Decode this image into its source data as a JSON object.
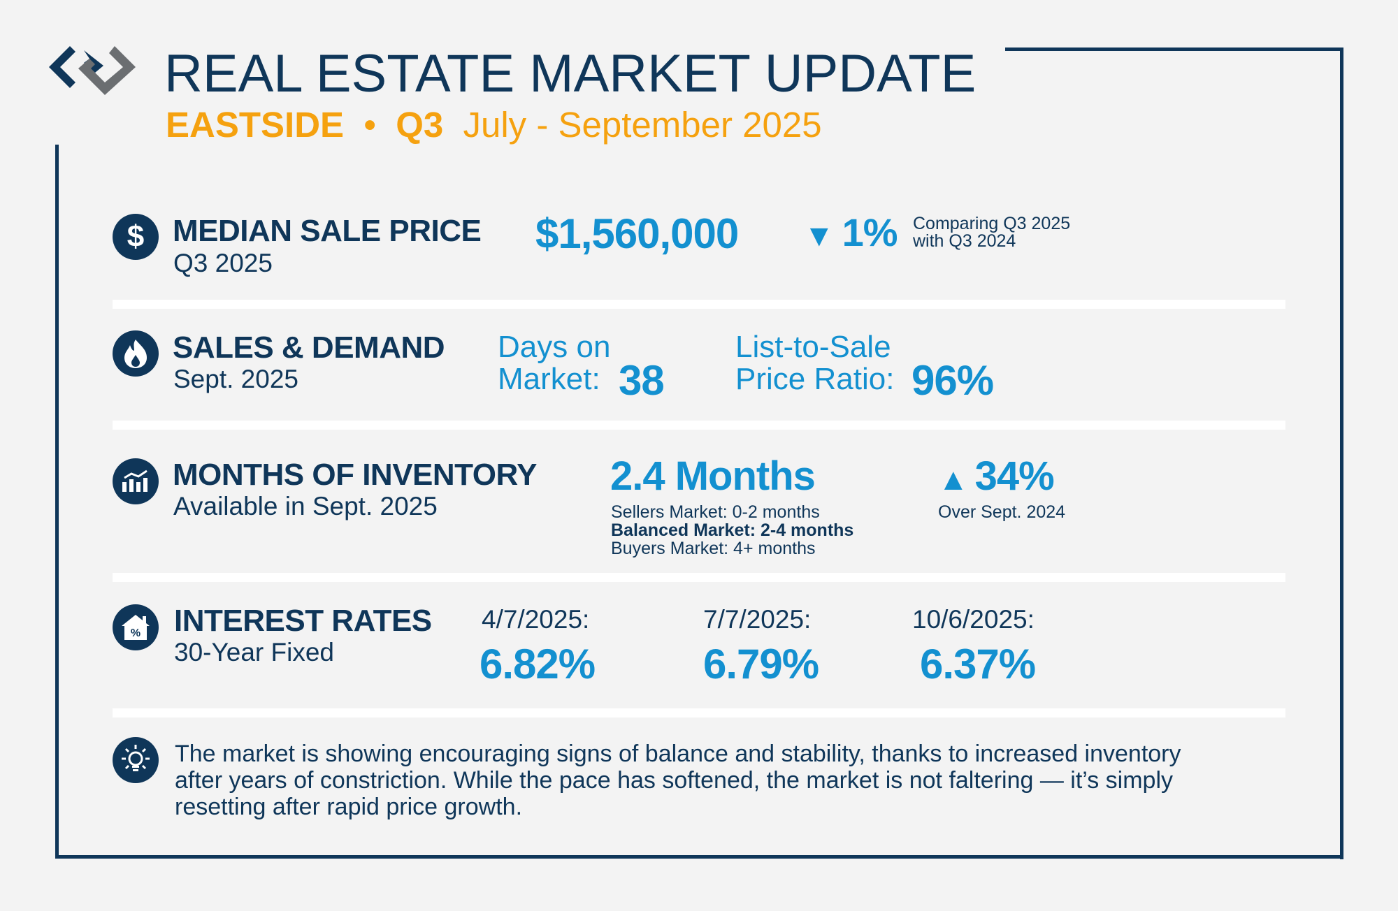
{
  "header": {
    "title": "REAL ESTATE MARKET UPDATE",
    "region": "EASTSIDE",
    "bullet": "•",
    "quarter": "Q3",
    "period": "July - September 2025"
  },
  "colors": {
    "navy": "#0f3659",
    "blue": "#1390d0",
    "orange": "#f5a10f",
    "gray": "#6b6e71"
  },
  "median": {
    "icon": "dollar-icon",
    "title": "MEDIAN SALE PRICE",
    "sub": "Q3 2025",
    "value": "$1,560,000",
    "arrow": "▼",
    "change": "1%",
    "compare1": "Comparing Q3 2025",
    "compare2": "with Q3 2024"
  },
  "sales": {
    "icon": "fire-icon",
    "title": "SALES & DEMAND",
    "sub": "Sept. 2025",
    "dom_label1": "Days on",
    "dom_label2": "Market:",
    "dom_value": "38",
    "ratio_label1": "List-to-Sale",
    "ratio_label2": "Price Ratio:",
    "ratio_value": "96%"
  },
  "inventory": {
    "icon": "chart-icon",
    "title": "MONTHS OF INVENTORY",
    "sub": "Available in Sept. 2025",
    "value": "2.4 Months",
    "legend": [
      "Sellers Market: 0-2 months",
      "Balanced Market: 2-4 months",
      "Buyers Market: 4+ months"
    ],
    "arrow": "▲",
    "change": "34%",
    "change_note": "Over Sept. 2024"
  },
  "rates": {
    "icon": "house-percent-icon",
    "title": "INTEREST RATES",
    "sub": "30-Year Fixed",
    "items": [
      {
        "date": "4/7/2025:",
        "rate": "6.82%"
      },
      {
        "date": "7/7/2025:",
        "rate": "6.79%"
      },
      {
        "date": "10/6/2025:",
        "rate": "6.37%"
      }
    ]
  },
  "insight": {
    "icon": "lightbulb-icon",
    "lines": [
      "The market is showing encouraging signs of balance and stability, thanks to increased inventory",
      "after years of constriction. While the pace has softened, the market is not faltering — it’s simply",
      "resetting after rapid price growth."
    ]
  }
}
